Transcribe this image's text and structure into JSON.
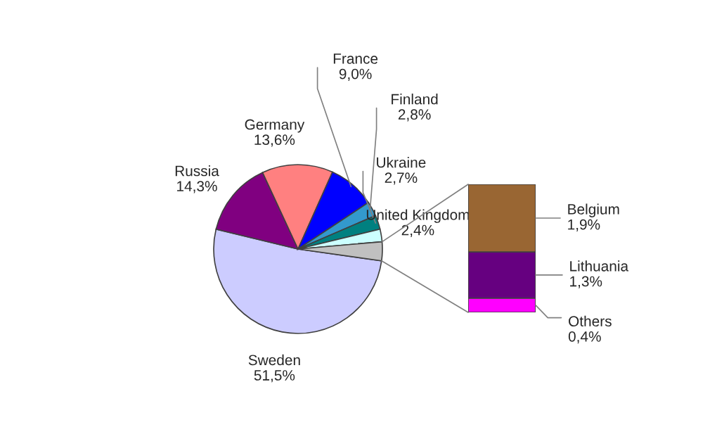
{
  "chart_data": [
    {
      "type": "pie",
      "categories": [
        "Sweden",
        "Russia",
        "Germany",
        "France",
        "Finland",
        "Ukraine",
        "United Kingdom",
        null
      ],
      "values": [
        51.5,
        14.3,
        13.6,
        9.0,
        2.8,
        2.7,
        2.4,
        3.6
      ],
      "colors": [
        "#ccccff",
        "#800080",
        "#ff8080",
        "#0000ff",
        "#3399cc",
        "#008080",
        "#ccffff",
        "#c0c0c0"
      ],
      "value_labels": [
        "51,5%",
        "14,3%",
        "13,6%",
        "9,0%",
        "2,8%",
        "2,7%",
        "2,4%",
        null
      ]
    },
    {
      "type": "bar",
      "stacked": true,
      "categories": [
        null
      ],
      "series": [
        {
          "name": "Others",
          "color": "#ff00ff",
          "values": [
            0.4
          ],
          "value_labels": [
            "0,4%"
          ]
        },
        {
          "name": "Lithuania",
          "color": "#660080",
          "values": [
            1.3
          ],
          "value_labels": [
            "1,3%"
          ]
        },
        {
          "name": "Belgium",
          "color": "#996633",
          "values": [
            1.9
          ],
          "value_labels": [
            "1,9%"
          ]
        }
      ]
    }
  ]
}
